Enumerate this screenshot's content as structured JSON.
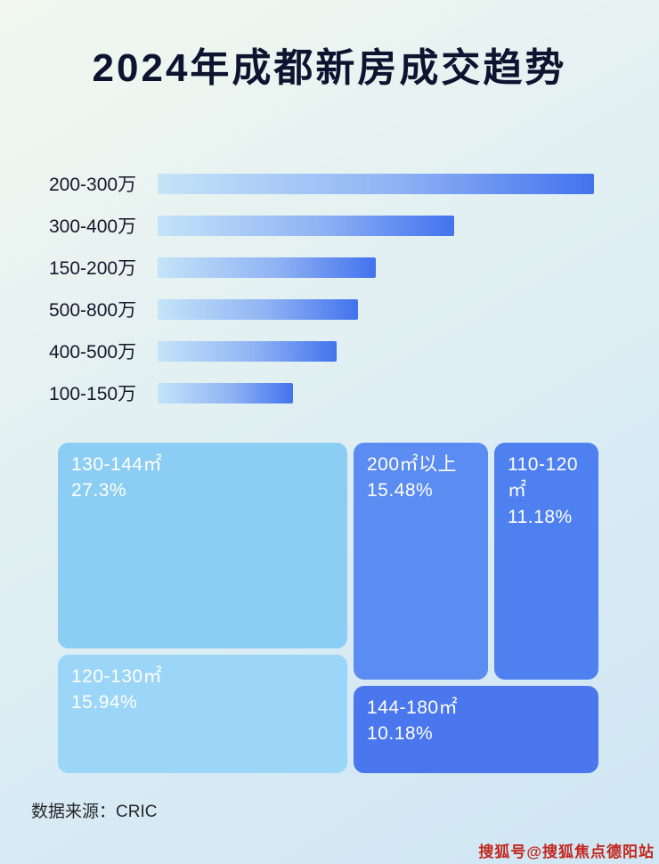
{
  "title": "2024年成都新房成交趋势",
  "footer": {
    "source": "数据来源：CRIC"
  },
  "watermark": "搜狐号@搜狐焦点德阳站",
  "colors": {
    "bar_gradient_start": "#c4e4f8",
    "bar_gradient_end": "#4273ee",
    "treemap_light_blue": "#8ccef3",
    "treemap_lighter_blue": "#9bd5f7",
    "treemap_medium_blue": "#5b8cf2",
    "treemap_deep_blue": "#4e80f0",
    "treemap_deepest_blue": "#4a77ee",
    "title_color": "#0d1430",
    "watermark_red": "#c3261c"
  },
  "chart_data": [
    {
      "type": "bar",
      "orientation": "horizontal",
      "title": "2024年成都新房成交趋势",
      "categories": [
        "200-300万",
        "300-400万",
        "150-200万",
        "500-800万",
        "400-500万",
        "100-150万"
      ],
      "values": [
        100,
        68,
        50,
        46,
        41,
        31
      ],
      "values_unit": "relative-length-percent (no numeric labels shown in image)",
      "xlabel": "",
      "ylabel": "",
      "grid": false,
      "legend": false
    },
    {
      "type": "treemap",
      "title": "",
      "blocks": [
        {
          "label": "130-144㎡",
          "value": "27.3%"
        },
        {
          "label": "200㎡以上",
          "value": "15.48%"
        },
        {
          "label": "110-120㎡",
          "value": "11.18%"
        },
        {
          "label": "120-130㎡",
          "value": "15.94%"
        },
        {
          "label": "144-180㎡",
          "value": "10.18%"
        }
      ]
    }
  ]
}
